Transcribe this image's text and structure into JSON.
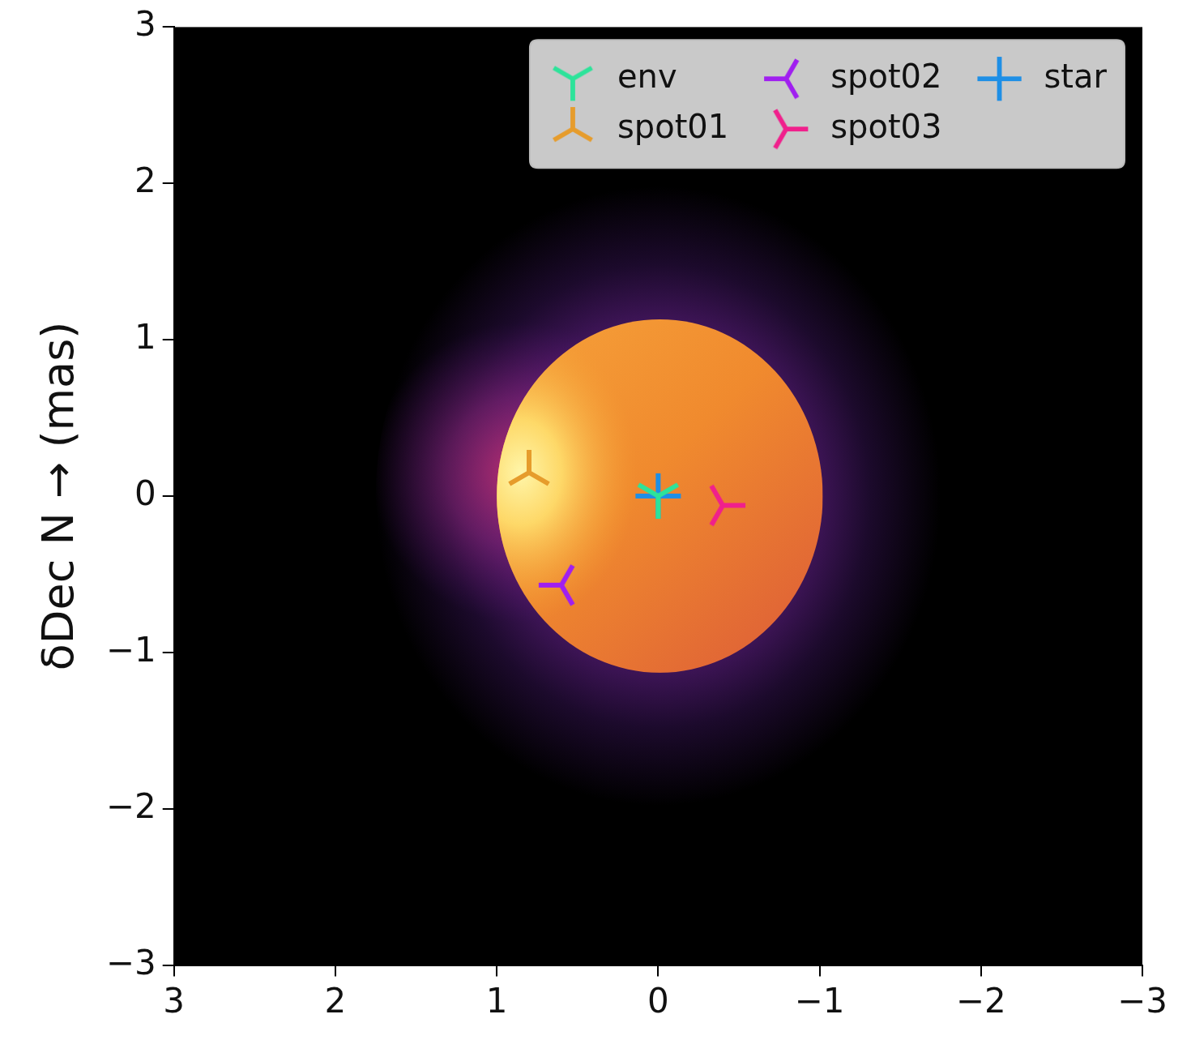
{
  "chart_data": {
    "type": "scatter",
    "ylabel": "δDec N → (mas)",
    "xlim": [
      3,
      -3
    ],
    "ylim": [
      -3,
      3
    ],
    "xticks": [
      3,
      2,
      1,
      0,
      {
        "value": -1,
        "label": "−1"
      },
      {
        "value": -2,
        "label": "−2"
      },
      {
        "value": -3,
        "label": "−3"
      }
    ],
    "yticks": [
      {
        "value": -3,
        "label": "−3"
      },
      {
        "value": -2,
        "label": "−2"
      },
      {
        "value": -1,
        "label": "−1"
      },
      0,
      1,
      2,
      3
    ],
    "grid": false,
    "legend": "upper right",
    "series": [
      {
        "name": "env",
        "color": "#2de39a",
        "marker": "tri_down",
        "x": [
          0
        ],
        "y": [
          0
        ]
      },
      {
        "name": "spot01",
        "color": "#e69c2c",
        "marker": "tri_up",
        "x": [
          0.8
        ],
        "y": [
          0.15
        ]
      },
      {
        "name": "spot02",
        "color": "#a01ff0",
        "marker": "tri_left",
        "x": [
          0.6
        ],
        "y": [
          -0.57
        ]
      },
      {
        "name": "spot03",
        "color": "#f0208c",
        "marker": "tri_right",
        "x": [
          -0.4
        ],
        "y": [
          -0.06
        ]
      },
      {
        "name": "star",
        "color": "#1e8fe6",
        "marker": "plus",
        "x": [
          0
        ],
        "y": [
          0
        ]
      }
    ],
    "image": {
      "envelope": {
        "center": [
          0,
          0
        ],
        "semi_axes": [
          1.75,
          1.98
        ]
      },
      "star_disk": {
        "center": [
          -0.01,
          0
        ],
        "semi_axes": [
          1.01,
          1.13
        ]
      },
      "bright_spot": {
        "center": [
          0.85,
          0.15
        ],
        "semi_axes": [
          0.45,
          0.6
        ]
      }
    }
  }
}
